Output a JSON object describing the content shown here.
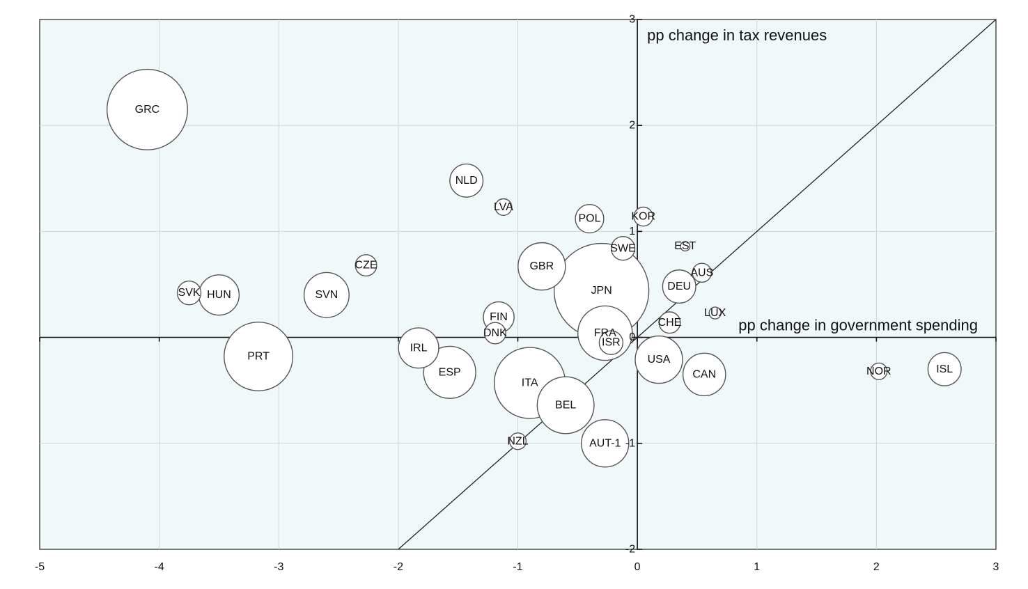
{
  "chart_data": {
    "type": "scatter",
    "x_ticks": [
      "-5",
      "-4",
      "-3",
      "-2",
      "-1",
      "0",
      "1",
      "2",
      "3"
    ],
    "y_ticks": [
      "3",
      "2",
      "1",
      "0",
      "-1",
      "-2"
    ],
    "xlim": [
      -5,
      3
    ],
    "ylim": [
      -2,
      3
    ],
    "x_axis_title": "pp change in government spending",
    "y_axis_title": "pp change in tax revenues",
    "grid": true,
    "diagonal_line": "y = x",
    "points": [
      {
        "label": "GRC",
        "x": -4.1,
        "y": 2.15,
        "size": 3.4
      },
      {
        "label": "NLD",
        "x": -1.43,
        "y": 1.48,
        "size": 1.4
      },
      {
        "label": "LVA",
        "x": -1.12,
        "y": 1.23,
        "size": 0.7
      },
      {
        "label": "POL",
        "x": -0.4,
        "y": 1.12,
        "size": 1.2
      },
      {
        "label": "KOR",
        "x": 0.05,
        "y": 1.14,
        "size": 0.8
      },
      {
        "label": "SWE",
        "x": -0.12,
        "y": 0.84,
        "size": 1.0
      },
      {
        "label": "EST",
        "x": 0.4,
        "y": 0.86,
        "size": 0.4
      },
      {
        "label": "CZE",
        "x": -2.27,
        "y": 0.68,
        "size": 0.9
      },
      {
        "label": "GBR",
        "x": -0.8,
        "y": 0.67,
        "size": 2.0
      },
      {
        "label": "AUS",
        "x": 0.54,
        "y": 0.61,
        "size": 0.8
      },
      {
        "label": "JPN",
        "x": -0.3,
        "y": 0.44,
        "size": 4.0
      },
      {
        "label": "DEU",
        "x": 0.35,
        "y": 0.48,
        "size": 1.4
      },
      {
        "label": "SVK",
        "x": -3.75,
        "y": 0.42,
        "size": 1.0
      },
      {
        "label": "HUN",
        "x": -3.5,
        "y": 0.4,
        "size": 1.7
      },
      {
        "label": "SVN",
        "x": -2.6,
        "y": 0.4,
        "size": 1.9
      },
      {
        "label": "FIN",
        "x": -1.16,
        "y": 0.19,
        "size": 1.3
      },
      {
        "label": "LUX",
        "x": 0.65,
        "y": 0.23,
        "size": 0.5
      },
      {
        "label": "CHE",
        "x": 0.27,
        "y": 0.14,
        "size": 0.9
      },
      {
        "label": "DNK",
        "x": -1.19,
        "y": 0.04,
        "size": 0.9
      },
      {
        "label": "FRA",
        "x": -0.27,
        "y": 0.04,
        "size": 2.3
      },
      {
        "label": "ISR",
        "x": -0.22,
        "y": -0.05,
        "size": 1.0
      },
      {
        "label": "IRL",
        "x": -1.83,
        "y": -0.1,
        "size": 1.7
      },
      {
        "label": "PRT",
        "x": -3.17,
        "y": -0.18,
        "size": 2.9
      },
      {
        "label": "USA",
        "x": 0.18,
        "y": -0.21,
        "size": 2.0
      },
      {
        "label": "ESP",
        "x": -1.57,
        "y": -0.33,
        "size": 2.2
      },
      {
        "label": "CAN",
        "x": 0.56,
        "y": -0.35,
        "size": 1.8
      },
      {
        "label": "NOR",
        "x": 2.02,
        "y": -0.32,
        "size": 0.7
      },
      {
        "label": "ISL",
        "x": 2.57,
        "y": -0.3,
        "size": 1.4
      },
      {
        "label": "ITA",
        "x": -0.9,
        "y": -0.43,
        "size": 3.0
      },
      {
        "label": "BEL",
        "x": -0.6,
        "y": -0.64,
        "size": 2.4
      },
      {
        "label": "NZL",
        "x": -1.0,
        "y": -0.98,
        "size": 0.7
      },
      {
        "label": "AUT-1",
        "x": -0.27,
        "y": -1.0,
        "size": 2.0
      }
    ]
  }
}
